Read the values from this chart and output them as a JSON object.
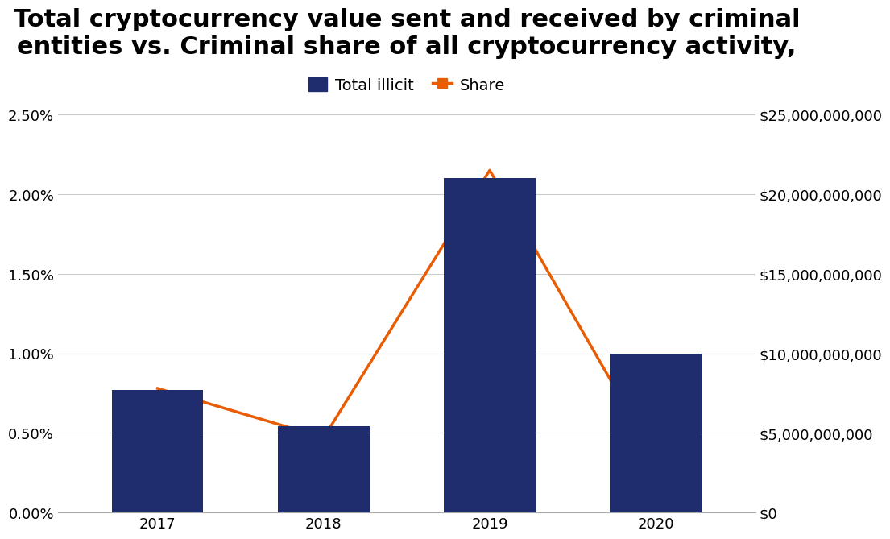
{
  "title": "Total cryptocurrency value sent and received by criminal\nentities vs. Criminal share of all cryptocurrency activity,",
  "years": [
    2017,
    2018,
    2019,
    2020
  ],
  "bar_values_dollars": [
    7700000000,
    5400000000,
    21000000000,
    10000000000
  ],
  "line_values_percent": [
    0.0078,
    0.0047,
    0.0215,
    0.0034
  ],
  "bar_color": "#1f2d6e",
  "line_color": "#e85d04",
  "legend_bar_label": "Total illicit",
  "legend_line_label": "Share",
  "left_ylim": [
    0,
    0.025
  ],
  "right_ylim": [
    0,
    25000000000
  ],
  "left_yticks": [
    0.0,
    0.005,
    0.01,
    0.015,
    0.02,
    0.025
  ],
  "left_yticklabels": [
    "0.00%",
    "0.50%",
    "1.00%",
    "1.50%",
    "2.00%",
    "2.50%"
  ],
  "right_yticks": [
    0,
    5000000000,
    10000000000,
    15000000000,
    20000000000,
    25000000000
  ],
  "right_yticklabels": [
    "$0",
    "$5,000,000,000",
    "$10,000,000,000",
    "$15,000,000,000",
    "$20,000,000,000",
    "$25,000,000,000"
  ],
  "background_color": "#ffffff",
  "title_fontsize": 22,
  "legend_fontsize": 14,
  "tick_fontsize": 13,
  "bar_width": 0.55,
  "grid_color": "#cccccc",
  "grid_linewidth": 0.8
}
